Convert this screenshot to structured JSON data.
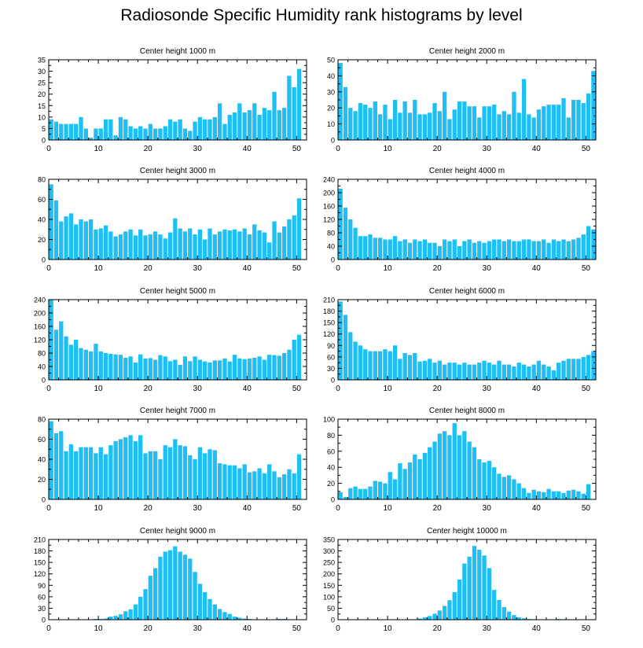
{
  "page_title": "Radiosonde Specific Humidity rank histograms by level",
  "colors": {
    "bar": "#1EBFF5",
    "axis": "#000000",
    "background": "#ffffff"
  },
  "chart_data": [
    {
      "type": "bar",
      "title": "Center height 1000 m",
      "xlim": [
        0,
        52
      ],
      "ylim": [
        0,
        35
      ],
      "xticks": [
        0,
        10,
        20,
        30,
        40,
        50
      ],
      "yticks": [
        0,
        5,
        10,
        15,
        20,
        25,
        30,
        35
      ],
      "values": [
        9,
        8,
        7,
        7,
        7,
        7,
        10,
        5,
        1,
        5,
        5,
        9,
        9,
        2,
        10,
        9,
        6,
        5,
        6,
        5,
        7,
        5,
        5,
        6,
        9,
        8,
        9,
        5,
        4,
        8,
        10,
        9,
        9,
        10,
        16,
        7,
        11,
        12,
        16,
        12,
        13,
        16,
        11,
        14,
        13,
        21,
        13,
        14,
        28,
        23,
        31
      ]
    },
    {
      "type": "bar",
      "title": "Center height 2000 m",
      "xlim": [
        0,
        52
      ],
      "ylim": [
        0,
        50
      ],
      "xticks": [
        0,
        10,
        20,
        30,
        40,
        50
      ],
      "yticks": [
        0,
        10,
        20,
        30,
        40,
        50
      ],
      "values": [
        48,
        33,
        20,
        18,
        23,
        22,
        20,
        24,
        16,
        22,
        13,
        25,
        17,
        24,
        17,
        25,
        16,
        16,
        17,
        23,
        18,
        30,
        13,
        19,
        24,
        24,
        21,
        21,
        14,
        21,
        21,
        22,
        16,
        18,
        16,
        30,
        17,
        38,
        16,
        14,
        19,
        21,
        22,
        22,
        22,
        26,
        14,
        25,
        25,
        23,
        29,
        43
      ]
    },
    {
      "type": "bar",
      "title": "Center height 3000 m",
      "xlim": [
        0,
        52
      ],
      "ylim": [
        0,
        80
      ],
      "xticks": [
        0,
        10,
        20,
        30,
        40,
        50
      ],
      "yticks": [
        0,
        20,
        40,
        60,
        80
      ],
      "values": [
        75,
        59,
        38,
        43,
        46,
        35,
        40,
        38,
        40,
        30,
        31,
        34,
        28,
        23,
        25,
        28,
        30,
        24,
        30,
        24,
        25,
        28,
        25,
        21,
        27,
        41,
        31,
        28,
        31,
        25,
        30,
        20,
        31,
        25,
        28,
        30,
        29,
        30,
        28,
        31,
        25,
        35,
        29,
        27,
        17,
        38,
        27,
        33,
        40,
        44,
        61
      ]
    },
    {
      "type": "bar",
      "title": "Center height 4000 m",
      "xlim": [
        0,
        52
      ],
      "ylim": [
        0,
        240
      ],
      "xticks": [
        0,
        10,
        20,
        30,
        40,
        50
      ],
      "yticks": [
        0,
        40,
        80,
        120,
        160,
        200,
        240
      ],
      "values": [
        212,
        155,
        120,
        95,
        70,
        70,
        75,
        65,
        65,
        60,
        60,
        70,
        55,
        60,
        50,
        60,
        55,
        60,
        50,
        50,
        40,
        60,
        55,
        60,
        40,
        55,
        60,
        50,
        55,
        50,
        55,
        60,
        60,
        55,
        60,
        55,
        55,
        60,
        60,
        55,
        55,
        60,
        50,
        60,
        55,
        60,
        55,
        60,
        65,
        75,
        100,
        90
      ]
    },
    {
      "type": "bar",
      "title": "Center height 5000 m",
      "xlim": [
        0,
        52
      ],
      "ylim": [
        0,
        240
      ],
      "xticks": [
        0,
        10,
        20,
        30,
        40,
        50
      ],
      "yticks": [
        0,
        40,
        80,
        120,
        160,
        200,
        240
      ],
      "values": [
        240,
        150,
        175,
        130,
        105,
        120,
        95,
        90,
        85,
        108,
        85,
        80,
        78,
        76,
        75,
        66,
        70,
        52,
        76,
        64,
        65,
        60,
        74,
        70,
        56,
        60,
        45,
        70,
        56,
        70,
        60,
        55,
        52,
        58,
        58,
        64,
        55,
        75,
        64,
        62,
        64,
        66,
        70,
        60,
        75,
        74,
        72,
        80,
        90,
        120,
        135
      ]
    },
    {
      "type": "bar",
      "title": "Center height 6000 m",
      "xlim": [
        0,
        52
      ],
      "ylim": [
        0,
        210
      ],
      "xticks": [
        0,
        10,
        20,
        30,
        40,
        50
      ],
      "yticks": [
        0,
        30,
        60,
        90,
        120,
        150,
        180,
        210
      ],
      "values": [
        205,
        170,
        125,
        100,
        90,
        80,
        75,
        75,
        75,
        80,
        75,
        90,
        55,
        70,
        65,
        70,
        48,
        50,
        55,
        45,
        50,
        40,
        45,
        45,
        40,
        45,
        40,
        40,
        45,
        50,
        45,
        40,
        50,
        40,
        40,
        35,
        45,
        40,
        35,
        40,
        50,
        40,
        35,
        25,
        45,
        50,
        55,
        55,
        55,
        60,
        65,
        75
      ]
    },
    {
      "type": "bar",
      "title": "Center height 7000 m",
      "xlim": [
        0,
        52
      ],
      "ylim": [
        0,
        80
      ],
      "xticks": [
        0,
        10,
        20,
        30,
        40,
        50
      ],
      "yticks": [
        0,
        20,
        40,
        60,
        80
      ],
      "values": [
        78,
        66,
        68,
        48,
        55,
        48,
        52,
        52,
        52,
        46,
        52,
        45,
        54,
        58,
        60,
        62,
        64,
        58,
        64,
        46,
        48,
        48,
        40,
        54,
        52,
        60,
        54,
        53,
        44,
        40,
        52,
        46,
        50,
        49,
        36,
        35,
        34,
        34,
        31,
        35,
        27,
        28,
        31,
        26,
        35,
        28,
        22,
        25,
        30,
        26,
        45
      ]
    },
    {
      "type": "bar",
      "title": "Center height 8000 m",
      "xlim": [
        0,
        52
      ],
      "ylim": [
        0,
        100
      ],
      "xticks": [
        0,
        10,
        20,
        30,
        40,
        50
      ],
      "yticks": [
        0,
        20,
        40,
        60,
        80,
        100
      ],
      "values": [
        9,
        3,
        14,
        16,
        13,
        13,
        16,
        23,
        22,
        20,
        34,
        25,
        45,
        38,
        46,
        56,
        50,
        58,
        65,
        72,
        82,
        85,
        80,
        95,
        80,
        85,
        72,
        65,
        50,
        46,
        48,
        40,
        32,
        28,
        30,
        25,
        20,
        14,
        8,
        12,
        10,
        9,
        13,
        10,
        10,
        8,
        11,
        12,
        10,
        7,
        19
      ]
    },
    {
      "type": "bar",
      "title": "Center height 9000 m",
      "xlim": [
        0,
        52
      ],
      "ylim": [
        0,
        210
      ],
      "xticks": [
        0,
        10,
        20,
        30,
        40,
        50
      ],
      "yticks": [
        0,
        30,
        60,
        90,
        120,
        150,
        180,
        210
      ],
      "values": [
        0,
        0,
        0,
        0,
        0,
        0,
        0,
        1,
        1,
        2,
        2,
        3,
        8,
        10,
        14,
        22,
        27,
        40,
        60,
        80,
        115,
        135,
        165,
        178,
        182,
        192,
        178,
        170,
        160,
        125,
        94,
        72,
        54,
        40,
        28,
        20,
        15,
        8,
        5,
        3,
        2,
        1,
        0,
        0,
        0,
        0,
        2,
        2,
        0,
        0,
        0
      ]
    },
    {
      "type": "bar",
      "title": "Center height 10000 m",
      "xlim": [
        0,
        52
      ],
      "ylim": [
        0,
        350
      ],
      "xticks": [
        0,
        10,
        20,
        30,
        40,
        50
      ],
      "yticks": [
        0,
        50,
        100,
        150,
        200,
        250,
        300,
        350
      ],
      "values": [
        0,
        0,
        0,
        0,
        0,
        0,
        0,
        0,
        0,
        0,
        0,
        0,
        0,
        0,
        0,
        2,
        5,
        10,
        16,
        26,
        40,
        60,
        85,
        120,
        175,
        245,
        275,
        322,
        305,
        280,
        225,
        130,
        86,
        55,
        35,
        20,
        10,
        6,
        3,
        2,
        1,
        0,
        0,
        0,
        3,
        2,
        0,
        0,
        0,
        0,
        0,
        0
      ]
    }
  ]
}
